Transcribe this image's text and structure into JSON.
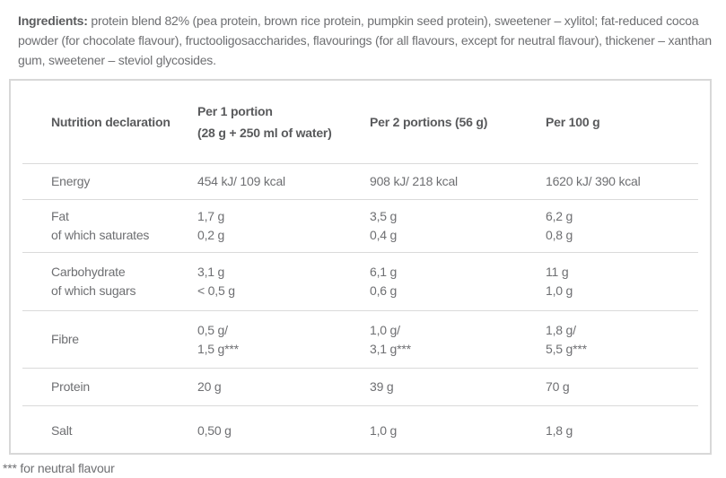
{
  "ingredients": {
    "label": "Ingredients:",
    "text": " protein blend 82% (pea protein, brown rice protein, pumpkin seed protein), sweetener – xylitol; fat-reduced cocoa powder (for chocolate flavour), fructooligosaccharides, flavourings (for all flavours, except for neutral flavour), thickener – xanthan gum, sweetener – steviol glycosides."
  },
  "table": {
    "headers": {
      "col1": "Nutrition declaration",
      "col2_line1": "Per 1 portion",
      "col2_line2": "(28 g + 250 ml of water)",
      "col3": "Per 2 portions (56 g)",
      "col4": "Per 100 g"
    },
    "rows": [
      {
        "name": "energy",
        "label": [
          "Energy"
        ],
        "per1": [
          "454 kJ/ 109 kcal"
        ],
        "per2": [
          "908 kJ/ 218 kcal"
        ],
        "per100": [
          "1620 kJ/ 390 kcal"
        ]
      },
      {
        "name": "fat",
        "label": [
          "Fat",
          "of which saturates"
        ],
        "per1": [
          "1,7 g",
          "0,2 g"
        ],
        "per2": [
          "3,5 g",
          "0,4 g"
        ],
        "per100": [
          "6,2 g",
          "0,8 g"
        ]
      },
      {
        "name": "carbohydrate",
        "label": [
          "Carbohydrate",
          "of which sugars"
        ],
        "per1": [
          "3,1 g",
          "< 0,5 g"
        ],
        "per2": [
          "6,1 g",
          "0,6 g"
        ],
        "per100": [
          "11 g",
          "1,0 g"
        ]
      },
      {
        "name": "fibre",
        "label": [
          "Fibre"
        ],
        "per1": [
          "0,5 g/",
          "1,5 g***"
        ],
        "per2": [
          "1,0 g/",
          "3,1 g***"
        ],
        "per100": [
          "1,8 g/",
          "5,5 g***"
        ]
      },
      {
        "name": "protein",
        "label": [
          "Protein"
        ],
        "per1": [
          "20 g"
        ],
        "per2": [
          "39 g"
        ],
        "per100": [
          "70 g"
        ]
      },
      {
        "name": "salt",
        "label": [
          "Salt"
        ],
        "per1": [
          "0,50 g"
        ],
        "per2": [
          "1,0 g"
        ],
        "per100": [
          "1,8 g"
        ]
      }
    ]
  },
  "footnote": "*** for neutral flavour",
  "colors": {
    "text": "#6e6f72",
    "heading_text": "#595a5c",
    "border": "#d8d8d8",
    "divider": "#dadada",
    "background": "#ffffff"
  }
}
